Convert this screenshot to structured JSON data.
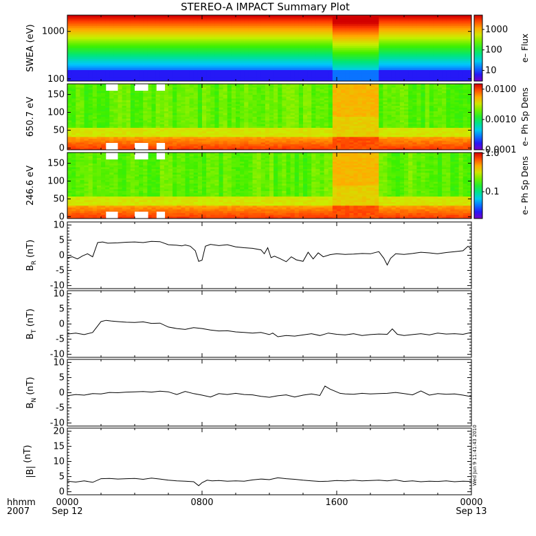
{
  "chart_data": {
    "title": "STEREO-A IMPACT Summary Plot",
    "x_axis": {
      "label_lines": [
        "hhmm",
        "2007"
      ],
      "ticks": [
        {
          "time": "0000",
          "date": "Sep 12",
          "hour": 0
        },
        {
          "time": "0800",
          "date": "",
          "hour": 8
        },
        {
          "time": "1600",
          "date": "",
          "hour": 16
        },
        {
          "time": "0000",
          "date": "Sep 13",
          "hour": 24
        }
      ],
      "range_hours": [
        0,
        24
      ]
    },
    "spectrograms": [
      {
        "type": "heatmap",
        "ylabel": "SWEA (eV)",
        "y_scale": "log",
        "ylim": [
          90,
          2200
        ],
        "yticks": [
          {
            "v": 1000,
            "label": "1000"
          },
          {
            "v": 100,
            "label": "100"
          }
        ],
        "colorbar": {
          "title": "e– Flux",
          "scale": "log",
          "range": [
            3,
            5000
          ],
          "ticks": [
            {
              "v": 1000,
              "label": "1000"
            },
            {
              "v": 100,
              "label": "100"
            },
            {
              "v": 10,
              "label": "10"
            }
          ]
        },
        "events": [
          {
            "start_hour": 15.7,
            "end_hour": 18.5,
            "effect": "enhanced flux"
          }
        ]
      },
      {
        "type": "heatmap",
        "ylabel": "650.7 eV",
        "y_scale": "linear",
        "ylim": [
          -5,
          180
        ],
        "yticks": [
          {
            "v": 150,
            "label": "150"
          },
          {
            "v": 100,
            "label": "100"
          },
          {
            "v": 50,
            "label": "50"
          },
          {
            "v": 0,
            "label": "0"
          }
        ],
        "colorbar": {
          "title": "e– Ph Sp Dens",
          "scale": "log",
          "range": [
            0.0001,
            0.015
          ],
          "ticks": [
            {
              "v": 0.01,
              "label": "0.0100"
            },
            {
              "v": 0.001,
              "label": "0.0010"
            },
            {
              "v": 0.0001,
              "label": "0.0001"
            }
          ]
        },
        "events": [
          {
            "start_hour": 15.7,
            "end_hour": 18.5,
            "effect": "enhanced phase space density"
          }
        ]
      },
      {
        "type": "heatmap",
        "ylabel": "246.6 eV",
        "y_scale": "linear",
        "ylim": [
          -5,
          180
        ],
        "yticks": [
          {
            "v": 150,
            "label": "150"
          },
          {
            "v": 100,
            "label": "100"
          },
          {
            "v": 50,
            "label": "50"
          },
          {
            "v": 0,
            "label": "0"
          }
        ],
        "colorbar": {
          "title": "e– Ph Sp Dens",
          "scale": "log",
          "range": [
            0.02,
            1.05
          ],
          "ticks": [
            {
              "v": 1,
              "label": "1.0"
            },
            {
              "v": 0.1,
              "label": "0.1"
            }
          ]
        },
        "events": [
          {
            "start_hour": 15.7,
            "end_hour": 18.5,
            "effect": "enhanced phase space density"
          }
        ]
      }
    ],
    "field_panels": [
      {
        "type": "line",
        "label_main": "B",
        "label_sub": "R",
        "label_unit": "(nT)",
        "ylim": [
          -11,
          11
        ],
        "yticks": [
          {
            "v": 10,
            "label": "10"
          },
          {
            "v": 5,
            "label": "5"
          },
          {
            "v": 0,
            "label": "0"
          },
          {
            "v": -5,
            "label": "-5"
          },
          {
            "v": -10,
            "label": "-10"
          }
        ],
        "x": [
          0,
          0.3,
          0.6,
          0.9,
          1.2,
          1.5,
          1.8,
          2.1,
          2.4,
          3,
          3.5,
          4,
          4.5,
          5,
          5.5,
          6,
          6.5,
          6.8,
          7,
          7.3,
          7.6,
          7.8,
          8.0,
          8.2,
          8.5,
          9,
          9.5,
          10,
          10.5,
          11,
          11.5,
          11.7,
          11.9,
          12.1,
          12.3,
          12.6,
          13,
          13.3,
          13.6,
          14,
          14.3,
          14.6,
          14.9,
          15.2,
          15.6,
          16,
          16.5,
          17,
          17.5,
          18,
          18.5,
          18.8,
          19,
          19.2,
          19.5,
          20,
          20.5,
          21,
          21.5,
          22,
          22.5,
          23,
          23.5,
          23.8,
          24
        ],
        "y": [
          -0.8,
          -0.5,
          -1.2,
          -0.2,
          0.5,
          -0.5,
          4.2,
          4.4,
          4.0,
          4.1,
          4.3,
          4.4,
          4.2,
          4.6,
          4.5,
          3.5,
          3.3,
          3.1,
          3.4,
          3.0,
          1.5,
          -2.0,
          -1.6,
          3.0,
          3.6,
          3.2,
          3.5,
          2.8,
          2.5,
          2.3,
          1.8,
          0.5,
          2.5,
          -0.8,
          -0.3,
          -1.0,
          -2.1,
          -0.5,
          -1.5,
          -2.0,
          1.0,
          -1.2,
          0.8,
          -0.5,
          0.2,
          0.5,
          0.3,
          0.4,
          0.6,
          0.5,
          1.2,
          -1.0,
          -3.2,
          -1.0,
          0.5,
          0.3,
          0.6,
          1.0,
          0.8,
          0.5,
          0.9,
          1.2,
          1.5,
          3.0,
          2.0
        ]
      },
      {
        "type": "line",
        "label_main": "B",
        "label_sub": "T",
        "label_unit": "(nT)",
        "ylim": [
          -11,
          11
        ],
        "yticks": [
          {
            "v": 10,
            "label": "10"
          },
          {
            "v": 5,
            "label": "5"
          },
          {
            "v": 0,
            "label": "0"
          },
          {
            "v": -5,
            "label": "-5"
          },
          {
            "v": -10,
            "label": "-10"
          }
        ],
        "x": [
          0,
          0.5,
          1,
          1.5,
          2,
          2.3,
          2.6,
          3,
          3.5,
          4,
          4.5,
          5,
          5.5,
          6,
          6.5,
          7,
          7.5,
          8,
          8.5,
          9,
          9.5,
          10,
          10.5,
          11,
          11.5,
          12,
          12.2,
          12.5,
          13,
          13.5,
          14,
          14.5,
          15,
          15.5,
          16,
          16.5,
          17,
          17.5,
          18,
          18.5,
          19,
          19.3,
          19.6,
          20,
          20.5,
          21,
          21.5,
          22,
          22.5,
          23,
          23.5,
          24
        ],
        "y": [
          -3.3,
          -3.0,
          -3.5,
          -2.8,
          0.8,
          1.2,
          1.0,
          0.8,
          0.6,
          0.5,
          0.7,
          0.2,
          0.3,
          -1.0,
          -1.5,
          -1.8,
          -1.2,
          -1.5,
          -2.0,
          -2.3,
          -2.2,
          -2.6,
          -2.8,
          -3.0,
          -2.8,
          -3.5,
          -3.0,
          -4.2,
          -3.8,
          -4.0,
          -3.6,
          -3.2,
          -3.8,
          -3.0,
          -3.4,
          -3.6,
          -3.2,
          -3.8,
          -3.5,
          -3.3,
          -3.4,
          -1.6,
          -3.4,
          -3.8,
          -3.5,
          -3.2,
          -3.6,
          -3.0,
          -3.3,
          -3.2,
          -3.4,
          -2.8
        ]
      },
      {
        "type": "line",
        "label_main": "B",
        "label_sub": "N",
        "label_unit": "(nT)",
        "ylim": [
          -11,
          11
        ],
        "yticks": [
          {
            "v": 10,
            "label": "10"
          },
          {
            "v": 5,
            "label": "5"
          },
          {
            "v": 0,
            "label": "0"
          },
          {
            "v": -5,
            "label": "-5"
          },
          {
            "v": -10,
            "label": "-10"
          }
        ],
        "x": [
          0,
          0.5,
          1,
          1.5,
          2,
          2.5,
          3,
          3.5,
          4,
          4.5,
          5,
          5.5,
          6,
          6.5,
          7,
          7.5,
          8,
          8.5,
          9,
          9.5,
          10,
          10.5,
          11,
          11.5,
          12,
          12.5,
          13,
          13.5,
          14,
          14.5,
          15,
          15.3,
          15.6,
          15.9,
          16.2,
          16.5,
          17,
          17.5,
          18,
          18.5,
          19,
          19.5,
          20,
          20.5,
          21,
          21.5,
          22,
          22.5,
          23,
          23.5,
          24
        ],
        "y": [
          -1.0,
          -0.6,
          -0.8,
          -0.3,
          -0.4,
          0.1,
          0.0,
          0.2,
          0.3,
          0.4,
          0.2,
          0.5,
          0.3,
          -0.6,
          0.4,
          -0.3,
          -0.8,
          -1.4,
          -0.3,
          -0.6,
          -0.2,
          -0.6,
          -0.7,
          -1.2,
          -1.5,
          -1.0,
          -0.7,
          -1.4,
          -0.8,
          -0.4,
          -0.9,
          2.2,
          1.2,
          0.5,
          -0.2,
          -0.4,
          -0.5,
          -0.2,
          -0.4,
          -0.3,
          -0.2,
          0.1,
          -0.3,
          -0.7,
          0.6,
          -0.8,
          -0.3,
          -0.5,
          -0.4,
          -0.8,
          -1.3
        ]
      },
      {
        "type": "line",
        "label_main": "|B|",
        "label_sub": "",
        "label_unit": "(nT)",
        "ylim": [
          -1,
          21
        ],
        "yticks": [
          {
            "v": 20,
            "label": "20"
          },
          {
            "v": 15,
            "label": "15"
          },
          {
            "v": 10,
            "label": "10"
          },
          {
            "v": 5,
            "label": "5"
          },
          {
            "v": 0,
            "label": "0"
          }
        ],
        "x": [
          0,
          0.5,
          1,
          1.5,
          2,
          2.5,
          3,
          3.5,
          4,
          4.5,
          5,
          5.5,
          6,
          6.5,
          7,
          7.5,
          7.8,
          8,
          8.3,
          8.6,
          9,
          9.5,
          10,
          10.5,
          11,
          11.5,
          12,
          12.5,
          13,
          13.5,
          14,
          14.5,
          15,
          15.5,
          16,
          16.5,
          17,
          17.5,
          18,
          18.5,
          19,
          19.5,
          20,
          20.5,
          21,
          21.5,
          22,
          22.5,
          23,
          23.5,
          24
        ],
        "y": [
          3.5,
          3.2,
          3.6,
          3.1,
          4.3,
          4.4,
          4.2,
          4.3,
          4.4,
          4.1,
          4.5,
          4.2,
          3.8,
          3.6,
          3.5,
          3.3,
          2.0,
          3.0,
          3.8,
          3.6,
          3.7,
          3.5,
          3.6,
          3.5,
          3.9,
          4.2,
          4.0,
          4.6,
          4.3,
          4.1,
          3.8,
          3.6,
          3.4,
          3.5,
          3.7,
          3.6,
          3.8,
          3.6,
          3.7,
          3.8,
          3.6,
          3.9,
          3.4,
          3.6,
          3.3,
          3.5,
          3.4,
          3.6,
          3.3,
          3.5,
          3.4
        ]
      }
    ],
    "timestamp_stamp": "Wed Jun  9 11:41:43 2010"
  }
}
